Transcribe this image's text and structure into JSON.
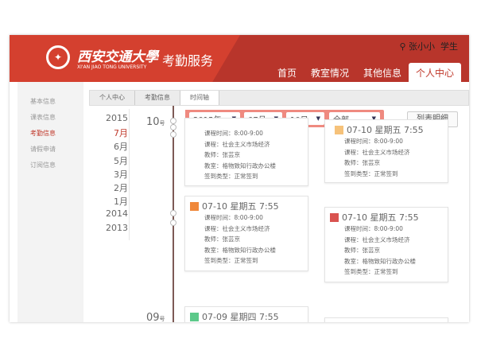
{
  "header": {
    "logo_text": "西安交通大學",
    "logo_en": "XI'AN JIAO TONG UNIVERSITY",
    "app_title": "考勤服务",
    "user_name": "张小小",
    "user_role": "学生"
  },
  "nav": [
    {
      "label": "首页"
    },
    {
      "label": "教室情况"
    },
    {
      "label": "其他信息"
    },
    {
      "label": "个人中心",
      "active": true
    }
  ],
  "sidebar": [
    {
      "label": "基本信息"
    },
    {
      "label": "课表信息"
    },
    {
      "label": "考勤信息",
      "active": true
    },
    {
      "label": "请假申请"
    },
    {
      "label": "订阅信息"
    }
  ],
  "breadcrumb": [
    "个人中心",
    "考勤信息",
    "时间轴"
  ],
  "years": [
    "2015",
    "7月",
    "6月",
    "5月",
    "3月",
    "2月",
    "1月",
    "2014",
    "2013"
  ],
  "days": {
    "d1": "10",
    "d2": "09",
    "suffix": "号"
  },
  "filter": {
    "year": "2015年",
    "month": "07月",
    "day": "10日",
    "type": "全部"
  },
  "list_button": "列表明细",
  "colors": {
    "accent": "#c0392b",
    "header": "#b8352b",
    "orange": "#f0883a",
    "red": "#d9534f",
    "green": "#5cc98a"
  },
  "labels": {
    "time": "课程时间：",
    "course": "课程：",
    "teacher": "教师：",
    "room": "教室：",
    "type": "签到类型："
  },
  "cards": [
    {
      "title": "07-10 星期五 7:55",
      "time": "8:00-9:00",
      "course": "社会主义市场经济",
      "teacher": "张芸京",
      "room": "格物致知行政办公楼",
      "type": "正常签到"
    },
    {
      "title": "07-10 星期五 7:55",
      "time": "8:00-9:00",
      "course": "社会主义市场经济",
      "teacher": "张芸京",
      "room": "格物致知行政办公楼",
      "type": "正常签到"
    },
    {
      "title": "07-10 星期五 7:55",
      "time": "8:00-9:00",
      "course": "社会主义市场经济",
      "teacher": "张芸京",
      "room": "格物致知行政办公楼",
      "type": "正常签到"
    },
    {
      "title": "07-10 星期五 7:55",
      "time": "8:00-9:00",
      "course": "社会主义市场经济",
      "teacher": "张芸京",
      "room": "格物致知行政办公楼",
      "type": "正常签到"
    },
    {
      "title": "07-09 星期四 7:55"
    }
  ]
}
